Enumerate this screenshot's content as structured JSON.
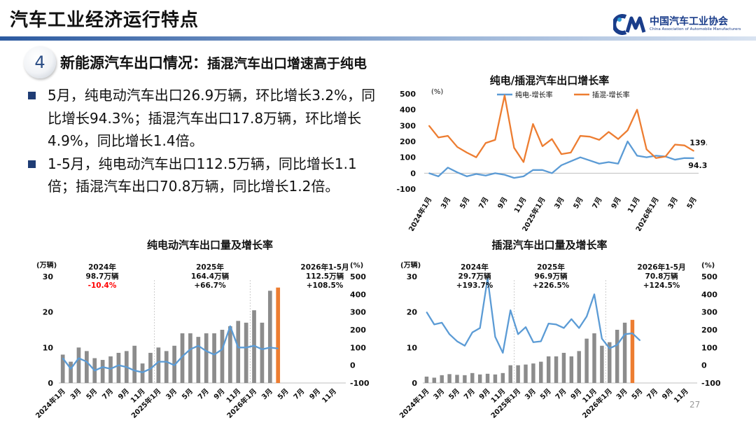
{
  "header": {
    "title": "汽车工业经济运行特点"
  },
  "logo": {
    "name": "中国汽车工业协会",
    "english": "China Association of Automobile Manufacturers"
  },
  "section": {
    "number": "4",
    "title": "新能源汽车出口情况：",
    "subtitle": "插混汽车出口增速高于纯电"
  },
  "bullets": [
    "5月，纯电动汽车出口26.9万辆，环比增长3.2%，同比增长94.3%；插混汽车出口17.8万辆，环比增长4.9%，同比增长1.4倍。",
    "1-5月，纯电动汽车出口112.5万辆，同比增长1.1倍；插混汽车出口70.8万辆，同比增长1.2倍。"
  ],
  "page_number": "27",
  "colors": {
    "bar": "#8c8c8c",
    "bar_highlight": "#ed7d31",
    "line_bev": "#5b9bd5",
    "line_phev": "#ed7d31",
    "neg_text": "#ff0000"
  },
  "chart_data": [
    {
      "type": "line",
      "title": "纯电/插混汽车出口增长率",
      "unit_label": "(%)",
      "ylim": [
        -100,
        500
      ],
      "yticks": [
        -100,
        0,
        100,
        200,
        300,
        400,
        500
      ],
      "x_tick_labels": [
        "2024年1月",
        "3月",
        "5月",
        "7月",
        "9月",
        "11月",
        "2025年1月",
        "3月",
        "5月",
        "7月",
        "9月",
        "11月",
        "2026年1月",
        "3月",
        "5月"
      ],
      "legend": "top",
      "series": [
        {
          "name": "纯电-增长率",
          "color": "#5b9bd5",
          "values": [
            0,
            -20,
            35,
            5,
            -20,
            -5,
            -15,
            0,
            -10,
            -30,
            -20,
            20,
            20,
            0,
            50,
            75,
            100,
            80,
            60,
            70,
            60,
            200,
            110,
            100,
            110,
            105,
            85,
            95,
            94.3
          ]
        },
        {
          "name": "插混-增长率",
          "color": "#ed7d31",
          "values": [
            300,
            225,
            235,
            165,
            130,
            100,
            190,
            210,
            490,
            160,
            70,
            310,
            170,
            215,
            120,
            130,
            235,
            230,
            210,
            260,
            215,
            270,
            400,
            150,
            95,
            105,
            180,
            175,
            139.6
          ]
        }
      ],
      "end_labels": [
        "139.6",
        "94.3"
      ]
    },
    {
      "type": "bar+line",
      "title": "纯电动汽车出口量及增长率",
      "left_unit": "(万辆)",
      "right_unit": "(%)",
      "left_ylim": [
        0,
        30
      ],
      "left_yticks": [
        0,
        10,
        20,
        30
      ],
      "right_ylim": [
        -100,
        500
      ],
      "right_yticks": [
        -100,
        0,
        100,
        200,
        300,
        400,
        500
      ],
      "x_tick_labels": [
        "2024年1月",
        "3月",
        "5月",
        "7月",
        "9月",
        "11月",
        "2025年1月",
        "3月",
        "5月",
        "7月",
        "9月",
        "11月",
        "2026年1月",
        "3月",
        "5月",
        "7月",
        "9月",
        "11月"
      ],
      "bars": [
        8,
        6,
        10,
        9,
        7,
        6.5,
        7.5,
        8.5,
        9,
        10.5,
        5.5,
        8.5,
        10,
        9,
        10.5,
        14,
        14,
        13,
        14,
        14,
        15,
        16,
        17.5,
        17,
        20.5,
        17,
        26,
        26.9
      ],
      "line": [
        40,
        -20,
        40,
        20,
        -30,
        -10,
        -20,
        0,
        -10,
        -30,
        -40,
        -20,
        20,
        20,
        0,
        50,
        90,
        110,
        80,
        60,
        90,
        220,
        100,
        100,
        110,
        90,
        100,
        94.3
      ],
      "annotations": [
        {
          "period": "2024年",
          "total": "98.7万辆",
          "growth": "-10.4%",
          "negative": true
        },
        {
          "period": "2025年",
          "total": "164.4万辆",
          "growth": "+66.7%",
          "negative": false
        },
        {
          "period": "2026年1-5月",
          "total": "112.5万辆",
          "growth": "+108.5%",
          "negative": false
        }
      ]
    },
    {
      "type": "bar+line",
      "title": "插混汽车出口量及增长率",
      "left_unit": "(万辆)",
      "right_unit": "(%)",
      "left_ylim": [
        0,
        30
      ],
      "left_yticks": [
        0,
        10,
        20,
        30
      ],
      "right_ylim": [
        -100,
        500
      ],
      "right_yticks": [
        -100,
        0,
        100,
        200,
        300,
        400,
        500
      ],
      "x_tick_labels": [
        "2024年1月",
        "3月",
        "5月",
        "7月",
        "9月",
        "11月",
        "2025年1月",
        "3月",
        "5月",
        "7月",
        "9月",
        "11月",
        "2026年1月",
        "3月",
        "5月",
        "7月",
        "9月",
        "11月"
      ],
      "bars": [
        1.8,
        1.5,
        2.2,
        2.5,
        2.3,
        2.2,
        2.8,
        2.4,
        2.6,
        2.4,
        2.8,
        5,
        5,
        5.2,
        5.5,
        6,
        7.5,
        7.5,
        8.5,
        7.5,
        9,
        12.5,
        14,
        10.5,
        11.5,
        15,
        17,
        17.8
      ],
      "line": [
        300,
        230,
        240,
        175,
        135,
        110,
        185,
        210,
        490,
        160,
        70,
        310,
        175,
        215,
        130,
        135,
        235,
        230,
        210,
        260,
        210,
        275,
        400,
        150,
        95,
        115,
        175,
        180,
        139.6
      ],
      "annotations": [
        {
          "period": "2024年",
          "total": "29.7万辆",
          "growth": "+193.7%",
          "negative": false
        },
        {
          "period": "2025年",
          "total": "96.9万辆",
          "growth": "+226.5%",
          "negative": false
        },
        {
          "period": "2026年1-5月",
          "total": "70.8万辆",
          "growth": "+124.5%",
          "negative": false
        }
      ]
    }
  ]
}
